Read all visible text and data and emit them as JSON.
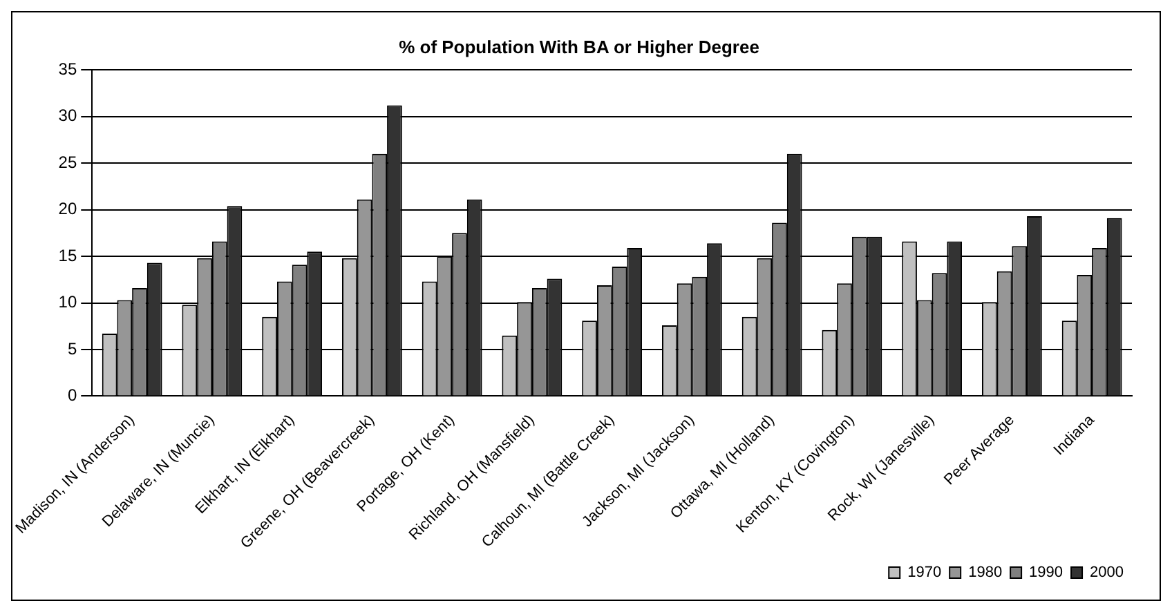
{
  "chart_data": {
    "type": "bar",
    "title": "% of Population With BA or Higher Degree",
    "categories": [
      "Madison, IN (Anderson)",
      "Delaware, IN (Muncie)",
      "Elkhart, IN (Elkhart)",
      "Greene, OH (Beavercreek)",
      "Portage, OH (Kent)",
      "Richland, OH (Mansfield)",
      "Calhoun, MI (Battle Creek)",
      "Jackson, MI (Jackson)",
      "Ottawa, MI (Holland)",
      "Kenton, KY (Covington)",
      "Rock, WI (Janesville)",
      "Peer Average",
      "Indiana"
    ],
    "series": [
      {
        "name": "1970",
        "color": "#c0c0c0",
        "values": [
          6.7,
          9.8,
          8.5,
          14.8,
          12.3,
          6.5,
          8.1,
          7.6,
          8.5,
          7.1,
          16.6,
          10.1,
          8.1
        ]
      },
      {
        "name": "1980",
        "color": "#969696",
        "values": [
          10.3,
          14.8,
          12.3,
          21.1,
          15.0,
          10.1,
          11.9,
          12.1,
          14.8,
          12.1,
          10.3,
          13.4,
          13.0
        ]
      },
      {
        "name": "1990",
        "color": "#808080",
        "values": [
          11.6,
          16.6,
          14.1,
          26.0,
          17.5,
          11.6,
          13.9,
          12.8,
          18.6,
          17.1,
          13.2,
          16.1,
          15.9
        ]
      },
      {
        "name": "2000",
        "color": "#333333",
        "values": [
          14.3,
          20.4,
          15.5,
          31.2,
          21.1,
          12.6,
          15.9,
          16.4,
          26.0,
          17.1,
          16.6,
          19.3,
          19.1
        ]
      }
    ],
    "ylim": [
      0,
      35
    ],
    "yticks": [
      0,
      5,
      10,
      15,
      20,
      25,
      30,
      35
    ],
    "grid": "y",
    "legend": "bottom right"
  }
}
